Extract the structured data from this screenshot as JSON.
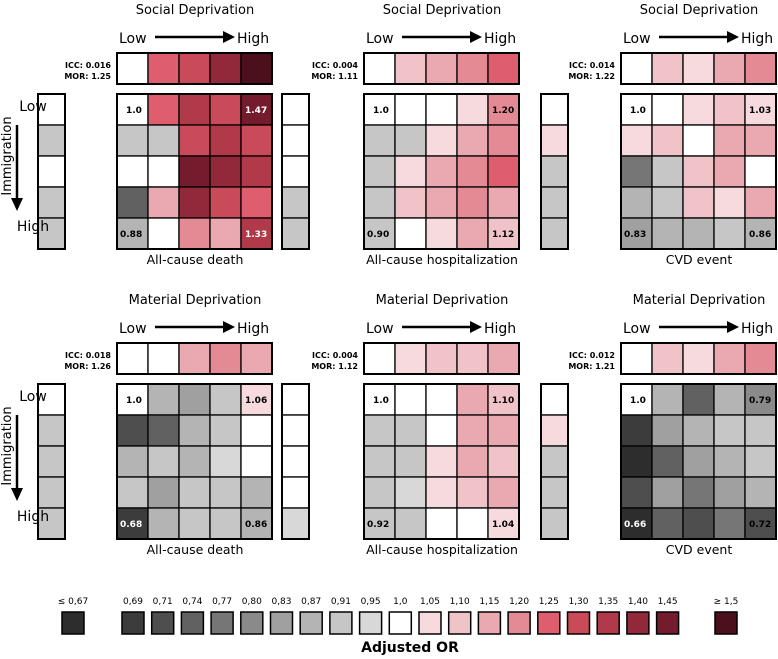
{
  "chart_data": {
    "type": "heatmap",
    "axis_labels": {
      "immigration": "Immigration",
      "low": "Low",
      "high": "High"
    },
    "panels": [
      {
        "title": "Social Deprivation",
        "outcome": "All-cause death",
        "icc": "ICC: 0.016",
        "mor": "MOR: 1.25",
        "deprivation_marginal": [
          1.0,
          1.25,
          1.3,
          1.4,
          1.5
        ],
        "immigration_marginal": [
          1.0,
          0.91,
          1.0,
          0.91,
          0.91
        ],
        "grid": [
          [
            1.0,
            1.25,
            1.35,
            1.3,
            1.47
          ],
          [
            0.91,
            0.91,
            1.3,
            1.35,
            1.3
          ],
          [
            1.0,
            1.0,
            1.45,
            1.4,
            1.35
          ],
          [
            0.74,
            1.15,
            1.4,
            1.3,
            1.25
          ],
          [
            0.88,
            1.0,
            1.2,
            1.15,
            1.33
          ]
        ],
        "corner_labels": {
          "top_left": "1.0",
          "top_right": "1.47",
          "bottom_left": "0.88",
          "bottom_right": "1.33"
        }
      },
      {
        "title": "Social Deprivation",
        "outcome": "All-cause hospitalization",
        "icc": "ICC: 0.004",
        "mor": "MOR: 1.11",
        "deprivation_marginal": [
          1.0,
          1.1,
          1.15,
          1.2,
          1.25
        ],
        "immigration_marginal": [
          1.0,
          1.0,
          1.0,
          0.91,
          0.91
        ],
        "grid": [
          [
            1.0,
            1.0,
            1.0,
            1.05,
            1.2
          ],
          [
            0.91,
            0.91,
            1.05,
            1.15,
            1.2
          ],
          [
            0.91,
            1.05,
            1.15,
            1.2,
            1.25
          ],
          [
            0.91,
            1.1,
            1.15,
            1.2,
            1.15
          ],
          [
            0.9,
            1.0,
            1.05,
            1.15,
            1.12
          ]
        ],
        "corner_labels": {
          "top_left": "1.0",
          "top_right": "1.20",
          "bottom_left": "0.90",
          "bottom_right": "1.12"
        }
      },
      {
        "title": "Social Deprivation",
        "outcome": "CVD event",
        "icc": "ICC: 0.014",
        "mor": "MOR: 1.22",
        "deprivation_marginal": [
          1.0,
          1.1,
          1.05,
          1.15,
          1.2
        ],
        "immigration_marginal": [
          1.0,
          1.05,
          0.91,
          0.91,
          0.91
        ],
        "grid": [
          [
            1.0,
            1.0,
            1.05,
            1.1,
            1.03
          ],
          [
            1.05,
            1.1,
            1.0,
            1.15,
            1.15
          ],
          [
            0.77,
            0.91,
            1.1,
            1.15,
            1.0
          ],
          [
            0.87,
            0.91,
            1.1,
            1.05,
            1.15
          ],
          [
            0.83,
            0.87,
            0.87,
            0.91,
            0.86
          ]
        ],
        "corner_labels": {
          "top_left": "1.0",
          "top_right": "1.03",
          "bottom_left": "0.83",
          "bottom_right": "0.86"
        }
      },
      {
        "title": "Material Deprivation",
        "outcome": "All-cause death",
        "icc": "ICC: 0.018",
        "mor": "MOR: 1.26",
        "deprivation_marginal": [
          1.0,
          1.0,
          1.15,
          1.2,
          1.15
        ],
        "immigration_marginal": [
          1.0,
          0.91,
          0.91,
          0.91,
          0.91
        ],
        "grid": [
          [
            1.0,
            0.87,
            0.83,
            0.91,
            1.06
          ],
          [
            0.71,
            0.74,
            0.87,
            0.91,
            1.0
          ],
          [
            0.87,
            0.91,
            0.87,
            0.95,
            1.0
          ],
          [
            0.91,
            0.83,
            0.91,
            0.91,
            0.87
          ],
          [
            0.68,
            0.87,
            0.91,
            0.91,
            0.86
          ]
        ],
        "corner_labels": {
          "top_left": "1.0",
          "top_right": "1.06",
          "bottom_left": "0.68",
          "bottom_right": "0.86"
        }
      },
      {
        "title": "Material Deprivation",
        "outcome": "All-cause hospitalization",
        "icc": "ICC: 0.004",
        "mor": "MOR: 1.12",
        "deprivation_marginal": [
          1.0,
          1.05,
          1.1,
          1.1,
          1.15
        ],
        "immigration_marginal": [
          1.0,
          1.0,
          1.0,
          1.0,
          0.95
        ],
        "grid": [
          [
            1.0,
            1.0,
            1.0,
            1.15,
            1.1
          ],
          [
            0.91,
            0.91,
            1.0,
            1.15,
            1.15
          ],
          [
            0.91,
            0.91,
            1.05,
            1.15,
            1.1
          ],
          [
            0.91,
            0.95,
            1.05,
            1.1,
            1.15
          ],
          [
            0.92,
            0.91,
            1.0,
            1.0,
            1.04
          ]
        ],
        "corner_labels": {
          "top_left": "1.0",
          "top_right": "1.10",
          "bottom_left": "0.92",
          "bottom_right": "1.04"
        }
      },
      {
        "title": "Material Deprivation",
        "outcome": "CVD event",
        "icc": "ICC: 0.012",
        "mor": "MOR: 1.21",
        "deprivation_marginal": [
          1.0,
          1.1,
          1.05,
          1.15,
          1.2
        ],
        "immigration_marginal": [
          1.0,
          1.05,
          0.91,
          0.91,
          0.91
        ],
        "grid": [
          [
            1.0,
            0.87,
            0.74,
            0.87,
            0.79
          ],
          [
            0.69,
            0.83,
            0.87,
            0.91,
            0.91
          ],
          [
            0.67,
            0.74,
            0.83,
            0.87,
            0.91
          ],
          [
            0.71,
            0.83,
            0.77,
            0.83,
            0.87
          ],
          [
            0.66,
            0.74,
            0.71,
            0.77,
            0.72
          ]
        ],
        "corner_labels": {
          "top_left": "1.0",
          "top_right": "0.79",
          "bottom_left": "0.66",
          "bottom_right": "0.72"
        }
      }
    ],
    "legend": {
      "title": "Adjusted OR",
      "labels": [
        "≤ 0,67",
        "0,69",
        "0,71",
        "0,74",
        "0,77",
        "0,80",
        "0,83",
        "0,87",
        "0,91",
        "0,95",
        "1,0",
        "1,05",
        "1,10",
        "1,15",
        "1,20",
        "1,25",
        "1,30",
        "1,35",
        "1,40",
        "1,45",
        "≥ 1,5"
      ],
      "values": [
        0.67,
        0.69,
        0.71,
        0.74,
        0.77,
        0.8,
        0.83,
        0.87,
        0.91,
        0.95,
        1.0,
        1.05,
        1.1,
        1.15,
        1.2,
        1.25,
        1.3,
        1.35,
        1.4,
        1.45,
        1.5
      ],
      "colors": [
        "#2d2d2d",
        "#3c3c3c",
        "#4e4e4e",
        "#616161",
        "#767676",
        "#8a8a8a",
        "#a0a0a0",
        "#b4b4b4",
        "#c6c6c6",
        "#d8d8d8",
        "#ffffff",
        "#f6dadd",
        "#f0c3c8",
        "#eaa8b0",
        "#e48a95",
        "#de5e6d",
        "#c94a58",
        "#b03a49",
        "#92293a",
        "#741c2d",
        "#4c0f1c"
      ]
    }
  }
}
